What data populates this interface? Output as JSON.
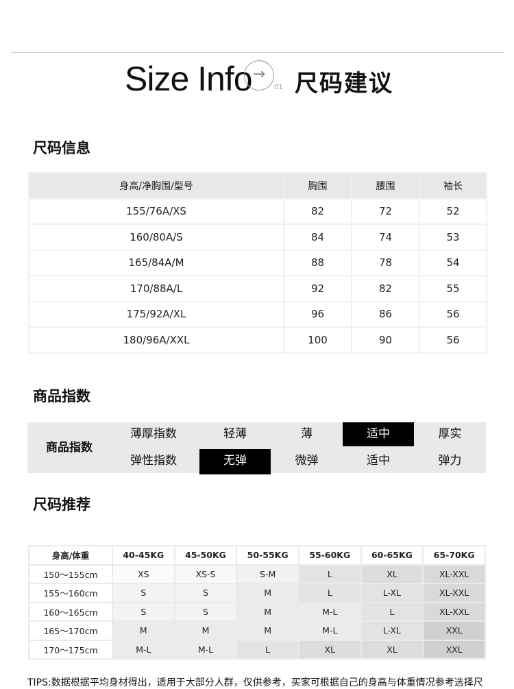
{
  "header": {
    "title_en": "Size Info",
    "arrow_icon": "arrow-right-circle-icon",
    "number": "01",
    "title_zh": "尺码建议"
  },
  "size_info": {
    "heading": "尺码信息",
    "columns": [
      "身高/净胸围/型号",
      "胸围",
      "腰围",
      "袖长"
    ],
    "rows": [
      [
        "155/76A/XS",
        "82",
        "72",
        "52"
      ],
      [
        "160/80A/S",
        "84",
        "74",
        "53"
      ],
      [
        "165/84A/M",
        "88",
        "78",
        "54"
      ],
      [
        "170/88A/L",
        "92",
        "82",
        "55"
      ],
      [
        "175/92A/XL",
        "96",
        "86",
        "56"
      ],
      [
        "180/96A/XXL",
        "100",
        "90",
        "56"
      ]
    ]
  },
  "product_index": {
    "heading": "商品指数",
    "label": "商品指数",
    "rows": [
      {
        "name": "薄厚指数",
        "options": [
          "轻薄",
          "薄",
          "适中",
          "厚实"
        ],
        "selected": 2
      },
      {
        "name": "弹性指数",
        "options": [
          "无弹",
          "微弹",
          "适中",
          "弹力"
        ],
        "selected": 0
      }
    ]
  },
  "recommend": {
    "heading": "尺码推荐",
    "columns": [
      "身高/体重",
      "40-45KG",
      "45-50KG",
      "50-55KG",
      "55-60KG",
      "60-65KG",
      "65-70KG"
    ],
    "rows": [
      [
        "150～155cm",
        "XS",
        "XS-S",
        "S-M",
        "L",
        "XL",
        "XL-XXL"
      ],
      [
        "155～160cm",
        "S",
        "S",
        "M",
        "L",
        "L-XL",
        "XL-XXL"
      ],
      [
        "160～165cm",
        "S",
        "S",
        "M",
        "M-L",
        "L",
        "XL-XXL"
      ],
      [
        "165～170cm",
        "M",
        "M",
        "M",
        "M-L",
        "L-XL",
        "XXL"
      ],
      [
        "170～175cm",
        "M-L",
        "M-L",
        "L",
        "XL",
        "XL",
        "XXL"
      ]
    ],
    "shade_colors": {
      "XS": "#fbfbfb",
      "XS-S": "#f8f8f8",
      "S-M": "#f1f1f1",
      "S": "#f3f3f3",
      "M": "#ebebeb",
      "M-L": "#ebebeb",
      "L": "#e3e3e3",
      "L-XL": "#e3e3e3",
      "XL": "#dcdcdc",
      "XL-XXL": "#d9d9d9",
      "XXL": "#d0d0d0"
    }
  },
  "tips": "TIPS:数据根据平均身材得出，适用于大部分人群，仅供参考，买家可根据自己的身高与体重情况参考选择尺"
}
